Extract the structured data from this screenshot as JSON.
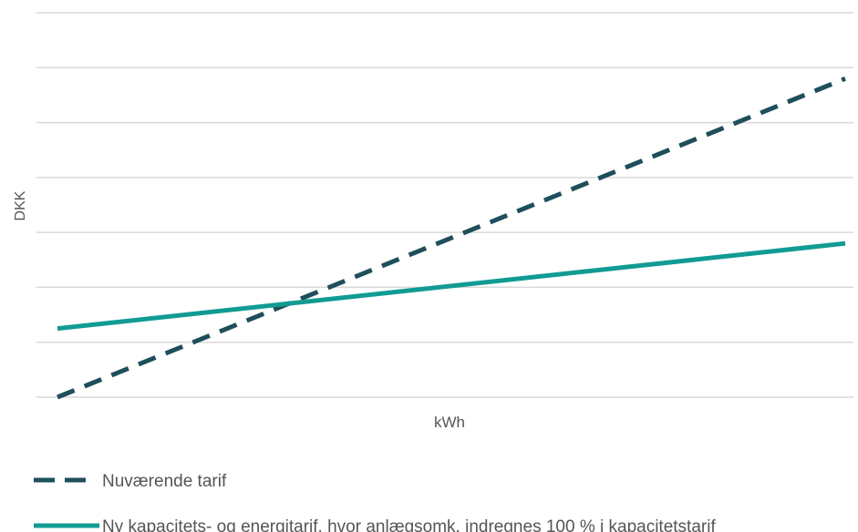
{
  "chart_data": {
    "type": "line",
    "title": "",
    "xlabel": "kWh",
    "ylabel": "DKK",
    "grid": true,
    "gridline_count": 8,
    "legend_placement": "bottom-left",
    "x": [
      0,
      1
    ],
    "xlim": [
      0,
      1
    ],
    "ylim": [
      0,
      7
    ],
    "series": [
      {
        "name": "Nuværende tarif",
        "style": "dashed",
        "color": "#1E4F5A",
        "values": [
          0,
          5.8
        ]
      },
      {
        "name": "Ny kapacitets- og energitarif, hvor anlægsomk. indregnes 100 % i kapacitetstarif",
        "style": "solid",
        "color": "#119B93",
        "values": [
          1.25,
          2.8
        ]
      }
    ]
  },
  "colors": {
    "gridline": "#D9D9D9",
    "axis_text": "#595959"
  }
}
